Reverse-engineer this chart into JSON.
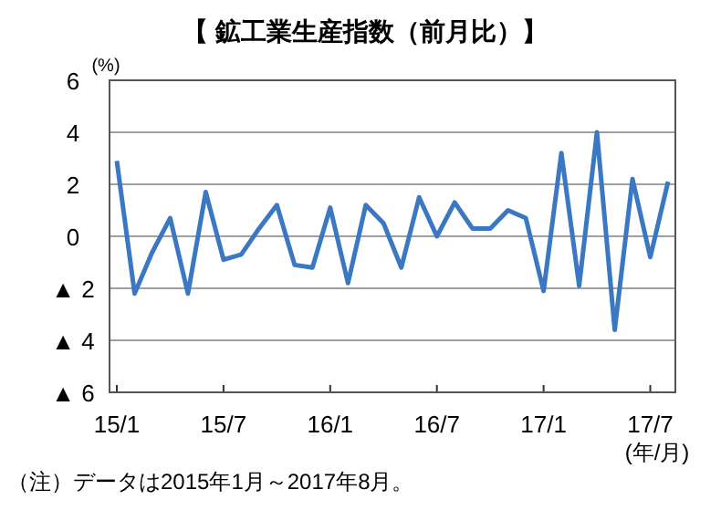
{
  "chart_data": {
    "type": "line",
    "title": "【 鉱工業生産指数（前月比）】",
    "ylabel": "(%)",
    "xlabel": "(年/月)",
    "annotations": [
      "（注）データは2015年1月～2017年8月。"
    ],
    "categories": [
      "15/1",
      null,
      null,
      null,
      null,
      null,
      "15/7",
      null,
      null,
      null,
      null,
      null,
      "16/1",
      null,
      null,
      null,
      null,
      null,
      "16/7",
      null,
      null,
      null,
      null,
      null,
      "17/1",
      null,
      null,
      null,
      null,
      null,
      "17/7",
      null
    ],
    "series": [
      {
        "color": "#3b78c3",
        "values": [
          2.9,
          -2.2,
          -0.6,
          0.7,
          -2.2,
          1.7,
          -0.9,
          -0.7,
          0.3,
          1.2,
          -1.1,
          -1.2,
          1.1,
          -1.8,
          1.2,
          0.5,
          -1.2,
          1.5,
          0.0,
          1.3,
          0.3,
          0.3,
          1.0,
          0.7,
          -2.1,
          3.2,
          -1.9,
          4.0,
          -3.6,
          2.2,
          -0.8,
          2.1
        ]
      }
    ],
    "ylim": [
      -6,
      6
    ],
    "yticks": [
      {
        "value": -6,
        "label": "▲ 6"
      },
      {
        "value": -4,
        "label": "▲ 4"
      },
      {
        "value": -2,
        "label": "▲ 2"
      },
      0,
      2,
      4,
      6
    ],
    "grid": "y"
  }
}
